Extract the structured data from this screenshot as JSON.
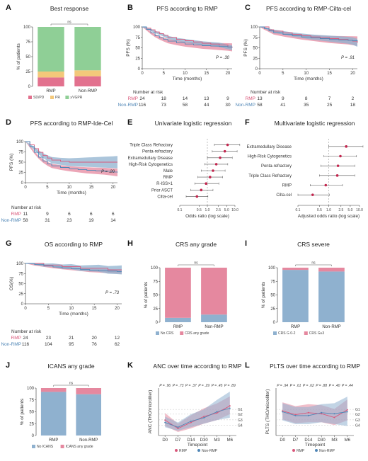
{
  "colors": {
    "rmp": "#d9577a",
    "nonrmp": "#4f86b6",
    "rmpFill": "#e5889f",
    "nonFill": "#8fb1cf",
    "pr": "#f3c87a",
    "vgpr": "#8fcf96",
    "sdpd": "#e2718e",
    "grey": "#888888"
  },
  "panels": {
    "A": {
      "letter": "A",
      "title": "Best response",
      "ylabel": "% of patients",
      "ns": "ns",
      "categories": [
        "RMP",
        "Non-RMP"
      ],
      "yticks": [
        "0",
        "25",
        "50",
        "75",
        "100"
      ],
      "legend": [
        "SD/PD",
        "PR",
        "≥VGPR"
      ]
    },
    "B": {
      "letter": "B",
      "title": "PFS according to RMP",
      "ylabel": "PFS (%)",
      "xlabel": "Time (months)",
      "p": "P = .30",
      "xticks": [
        "0",
        "5",
        "10",
        "15",
        "20"
      ],
      "yticks": [
        "0",
        "25",
        "50",
        "75",
        "100"
      ],
      "risk_header": "Number at risk",
      "risk": [
        {
          "name": "RMP",
          "values": [
            "24",
            "18",
            "14",
            "13",
            "9"
          ]
        },
        {
          "name": "Non-RMP",
          "values": [
            "116",
            "73",
            "58",
            "44",
            "30"
          ]
        }
      ]
    },
    "C": {
      "letter": "C",
      "title": "PFS according to RMP-Cilta-cel",
      "ylabel": "PFS (%)",
      "xlabel": "Time (months)",
      "p": "P = .91",
      "xticks": [
        "0",
        "5",
        "10",
        "15",
        "20"
      ],
      "yticks": [
        "0",
        "25",
        "50",
        "75",
        "100"
      ],
      "risk_header": "Number at risk",
      "risk": [
        {
          "name": "RMP",
          "values": [
            "13",
            "9",
            "8",
            "7",
            "2"
          ]
        },
        {
          "name": "Non-RMP",
          "values": [
            "58",
            "41",
            "35",
            "25",
            "18"
          ]
        }
      ]
    },
    "D": {
      "letter": "D",
      "title": "PFS according to RMP-Ide-Cel",
      "ylabel": "PFS (%)",
      "xlabel": "Time (months)",
      "p": "P = .20",
      "xticks": [
        "0",
        "5",
        "10",
        "15",
        "20"
      ],
      "yticks": [
        "0",
        "25",
        "50",
        "75",
        "100"
      ],
      "risk_header": "Number at risk",
      "risk": [
        {
          "name": "RMP",
          "values": [
            "11",
            "9",
            "6",
            "6",
            "6"
          ]
        },
        {
          "name": "Non-RMP",
          "values": [
            "58",
            "31",
            "23",
            "19",
            "14"
          ]
        }
      ]
    },
    "E": {
      "letter": "E",
      "title": "Univariate logistic regression",
      "xlabel": "Odds ratio (log scale)",
      "xticks": [
        "0.1",
        "0.5",
        "1.0",
        "2.5",
        "5.0",
        "10.0"
      ]
    },
    "F": {
      "letter": "F",
      "title": "Multivariate logistic regression",
      "xlabel": "Adjusted odds ratio (log scale)",
      "xticks": [
        "0.1",
        "0.5",
        "1.0",
        "2.5",
        "5.0",
        "10.0"
      ]
    },
    "G": {
      "letter": "G",
      "title": "OS according to RMP",
      "ylabel": "OS(%)",
      "xlabel": "Time (months)",
      "p": "P = .73",
      "xticks": [
        "0",
        "5",
        "10",
        "15",
        "20"
      ],
      "yticks": [
        "0",
        "25",
        "50",
        "75",
        "100"
      ],
      "risk_header": "Number at risk",
      "risk": [
        {
          "name": "RMP",
          "values": [
            "24",
            "23",
            "21",
            "20",
            "12"
          ]
        },
        {
          "name": "Non-RMP",
          "values": [
            "116",
            "104",
            "95",
            "76",
            "62"
          ]
        }
      ]
    },
    "H": {
      "letter": "H",
      "title": "CRS any grade",
      "ylabel": "% of patients",
      "ns": "ns",
      "categories": [
        "RMP",
        "Non-RMP"
      ],
      "yticks": [
        "0",
        "25",
        "50",
        "75",
        "100"
      ],
      "legend": [
        "No CRS",
        "CRS any grade"
      ]
    },
    "I": {
      "letter": "I",
      "title": "CRS severe",
      "ylabel": "% of patients",
      "ns": "ns",
      "categories": [
        "RMP",
        "Non-RMP"
      ],
      "yticks": [
        "0",
        "25",
        "50",
        "75",
        "100"
      ],
      "legend": [
        "CRS G 0-2",
        "CRS G≥3"
      ]
    },
    "J": {
      "letter": "J",
      "title": "ICANS any grade",
      "ylabel": "% of patients",
      "ns": "ns",
      "categories": [
        "RMP",
        "Non-RMP"
      ],
      "yticks": [
        "0",
        "25",
        "50",
        "75",
        "100"
      ],
      "legend": [
        "No ICANS",
        "ICANS any grade"
      ]
    },
    "K": {
      "letter": "K",
      "title": "ANC over time according to RMP",
      "ylabel": "ANC (THO/microliter)",
      "xlabel": "Timepoint",
      "timepoints": [
        "D0",
        "D7",
        "D14",
        "D30",
        "M3",
        "M6"
      ],
      "pvals": [
        "P = .96",
        "P = .73",
        "P = .37",
        "P = .29",
        "P = .45",
        "P = .89"
      ],
      "grades": [
        "G1",
        "G2",
        "G3",
        "G4"
      ],
      "legend": [
        "RMP",
        "Non-RMP"
      ]
    },
    "L": {
      "letter": "L",
      "title": "PLTS over time according to RMP",
      "ylabel": "PLTS (THO/microliter)",
      "xlabel": "Timepoint",
      "timepoints": [
        "D0",
        "D7",
        "D14",
        "D30",
        "M3",
        "M6"
      ],
      "pvals": [
        "P = .94",
        "P = .61",
        "P = .62",
        "P = .88",
        "P = .40",
        "P = .44"
      ],
      "grades": [
        "G1",
        "G2",
        "G3",
        "G4"
      ],
      "legend": [
        "RMP",
        "Non-RMP"
      ]
    }
  },
  "chart_data": [
    {
      "type": "bar",
      "id": "A",
      "title": "Best response",
      "categories": [
        "RMP",
        "Non-RMP"
      ],
      "ylim": [
        0,
        100
      ],
      "series": [
        {
          "name": "SD/PD",
          "values": [
            15,
            17
          ]
        },
        {
          "name": "PR",
          "values": [
            10,
            10
          ]
        },
        {
          "name": "≥VGPR",
          "values": [
            75,
            73
          ]
        }
      ]
    },
    {
      "type": "line",
      "id": "B",
      "title": "PFS according to RMP",
      "xlim": [
        0,
        21
      ],
      "ylim": [
        0,
        100
      ],
      "series": [
        {
          "name": "RMP",
          "x": [
            0,
            1,
            2,
            3,
            4,
            5,
            6,
            8,
            10,
            12,
            14,
            16,
            18,
            20,
            21
          ],
          "y": [
            100,
            97,
            93,
            88,
            84,
            80,
            75,
            70,
            67,
            64,
            61,
            59,
            57,
            52,
            50
          ]
        },
        {
          "name": "Non-RMP",
          "x": [
            0,
            1,
            2,
            3,
            4,
            5,
            6,
            8,
            10,
            12,
            14,
            16,
            18,
            20,
            21
          ],
          "y": [
            100,
            94,
            86,
            79,
            74,
            70,
            66,
            62,
            59,
            57,
            55,
            54,
            53,
            52,
            51
          ]
        }
      ]
    },
    {
      "type": "line",
      "id": "C",
      "title": "PFS according to RMP-Cilta-cel",
      "xlim": [
        0,
        21
      ],
      "ylim": [
        0,
        100
      ],
      "series": [
        {
          "name": "RMP",
          "x": [
            0,
            1,
            2,
            3,
            5,
            7,
            9,
            11,
            13,
            15,
            17,
            19,
            20,
            21
          ],
          "y": [
            100,
            100,
            93,
            90,
            86,
            82,
            79,
            76,
            74,
            72,
            70,
            68,
            66,
            62
          ]
        },
        {
          "name": "Non-RMP",
          "x": [
            0,
            1,
            2,
            3,
            5,
            7,
            9,
            11,
            13,
            15,
            17,
            19,
            20,
            21
          ],
          "y": [
            100,
            96,
            91,
            86,
            82,
            79,
            76,
            74,
            72,
            70,
            69,
            68,
            67,
            66
          ]
        }
      ]
    },
    {
      "type": "line",
      "id": "D",
      "title": "PFS according to RMP-Ide-Cel",
      "xlim": [
        0,
        21
      ],
      "ylim": [
        0,
        100
      ],
      "series": [
        {
          "name": "RMP",
          "x": [
            0,
            1,
            2,
            3,
            4,
            5,
            6,
            8,
            10,
            12,
            14,
            16,
            18,
            20,
            21
          ],
          "y": [
            100,
            92,
            83,
            74,
            66,
            60,
            55,
            52,
            50,
            50,
            50,
            50,
            50,
            50,
            50
          ]
        },
        {
          "name": "Non-RMP",
          "x": [
            0,
            1,
            2,
            3,
            4,
            5,
            6,
            8,
            10,
            12,
            14,
            16,
            18,
            20,
            21
          ],
          "y": [
            100,
            88,
            74,
            62,
            53,
            46,
            41,
            37,
            34,
            32,
            30,
            29,
            28,
            26,
            25
          ]
        }
      ]
    },
    {
      "type": "scatter",
      "id": "E",
      "title": "Univariate logistic regression",
      "xscale": "log",
      "xlim": [
        0.1,
        10
      ],
      "categories": [
        "Triple Class Refractory",
        "Penta-refractory",
        "Extramedullary Disease",
        "High-Risk Cytogenetics",
        "Male",
        "RMP",
        "R-ISS>1",
        "Prior ASCT",
        "Cilta-cel"
      ],
      "estimates": [
        5.4,
        4.3,
        2.9,
        2.1,
        1.6,
        1.25,
        0.9,
        0.6,
        0.42
      ],
      "lower": [
        1.8,
        1.5,
        1.0,
        0.8,
        0.6,
        0.45,
        0.35,
        0.25,
        0.17
      ],
      "upper": [
        15,
        12,
        8,
        5.5,
        4.4,
        3.6,
        2.6,
        1.6,
        1.05
      ]
    },
    {
      "type": "scatter",
      "id": "F",
      "title": "Multivariate logistic regression",
      "xscale": "log",
      "xlim": [
        0.1,
        10
      ],
      "categories": [
        "Extramedullary Disease",
        "High-Risk Cytogenetics",
        "Penta-refractory",
        "Triple Class Refractory",
        "RMP",
        "Cilta-cel"
      ],
      "estimates": [
        3.7,
        2.4,
        2.0,
        1.9,
        0.8,
        0.3
      ],
      "lower": [
        1.0,
        0.7,
        0.55,
        0.5,
        0.25,
        0.1
      ],
      "upper": [
        13,
        8,
        7,
        7,
        2.8,
        1.05
      ]
    },
    {
      "type": "line",
      "id": "G",
      "title": "OS according to RMP",
      "xlim": [
        0,
        21
      ],
      "ylim": [
        0,
        100
      ],
      "series": [
        {
          "name": "RMP",
          "x": [
            0,
            2,
            4,
            6,
            8,
            10,
            12,
            14,
            16,
            18,
            20,
            21
          ],
          "y": [
            100,
            100,
            96,
            96,
            92,
            92,
            88,
            88,
            88,
            84,
            84,
            84
          ]
        },
        {
          "name": "Non-RMP",
          "x": [
            0,
            2,
            4,
            6,
            8,
            10,
            12,
            14,
            16,
            18,
            20,
            21
          ],
          "y": [
            100,
            97,
            94,
            91,
            89,
            87,
            85,
            83,
            82,
            81,
            80,
            80
          ]
        }
      ]
    },
    {
      "type": "bar",
      "id": "H",
      "title": "CRS any grade",
      "categories": [
        "RMP",
        "Non-RMP"
      ],
      "ylim": [
        0,
        100
      ],
      "series": [
        {
          "name": "No CRS",
          "values": [
            8,
            14
          ]
        },
        {
          "name": "CRS any grade",
          "values": [
            92,
            86
          ]
        }
      ]
    },
    {
      "type": "bar",
      "id": "I",
      "title": "CRS severe",
      "categories": [
        "RMP",
        "Non-RMP"
      ],
      "ylim": [
        0,
        100
      ],
      "series": [
        {
          "name": "CRS G 0-2",
          "values": [
            96,
            93
          ]
        },
        {
          "name": "CRS G≥3",
          "values": [
            4,
            7
          ]
        }
      ]
    },
    {
      "type": "bar",
      "id": "J",
      "title": "ICANS any grade",
      "categories": [
        "RMP",
        "Non-RMP"
      ],
      "ylim": [
        0,
        100
      ],
      "series": [
        {
          "name": "No ICANS",
          "values": [
            92,
            87
          ]
        },
        {
          "name": "ICANS any grade",
          "values": [
            8,
            13
          ]
        }
      ]
    },
    {
      "type": "line",
      "id": "K",
      "title": "ANC over time according to RMP",
      "categories": [
        "D0",
        "D7",
        "D14",
        "D30",
        "M3",
        "M6"
      ],
      "ylim": [
        0,
        4
      ],
      "series": [
        {
          "name": "RMP",
          "values": [
            1.3,
            0.6,
            1.1,
            1.6,
            1.9,
            2.5
          ],
          "lower": [
            0.8,
            0.3,
            0.6,
            1.0,
            1.3,
            1.8
          ],
          "upper": [
            1.9,
            1.0,
            1.7,
            2.3,
            2.7,
            3.3
          ]
        },
        {
          "name": "Non-RMP",
          "values": [
            1.1,
            0.7,
            1.2,
            1.5,
            2.0,
            2.3
          ],
          "lower": [
            0.7,
            0.4,
            0.7,
            1.0,
            1.3,
            1.5
          ],
          "upper": [
            1.6,
            1.1,
            1.8,
            2.2,
            3.0,
            3.7
          ]
        }
      ]
    },
    {
      "type": "line",
      "id": "L",
      "title": "PLTS over time according to RMP",
      "categories": [
        "D0",
        "D7",
        "D14",
        "D30",
        "M3",
        "M6"
      ],
      "ylim": [
        0,
        250
      ],
      "series": [
        {
          "name": "RMP",
          "values": [
            130,
            110,
            120,
            115,
            95,
            135
          ],
          "lower": [
            85,
            65,
            70,
            70,
            55,
            80
          ],
          "upper": [
            175,
            155,
            165,
            160,
            140,
            190
          ]
        },
        {
          "name": "Non-RMP",
          "values": [
            125,
            105,
            105,
            120,
            115,
            125
          ],
          "lower": [
            80,
            60,
            60,
            70,
            60,
            50
          ],
          "upper": [
            170,
            150,
            150,
            165,
            170,
            205
          ]
        }
      ]
    }
  ]
}
